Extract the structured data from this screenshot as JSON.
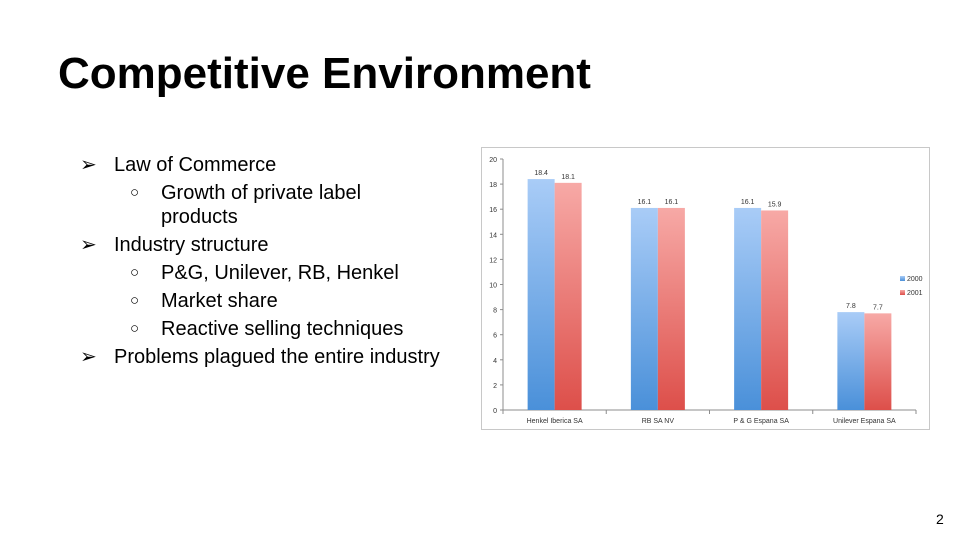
{
  "slide": {
    "title": "Competitive Environment",
    "page_number": "2",
    "bullets": [
      {
        "level": 1,
        "marker": "➢",
        "text": "Law of Commerce"
      },
      {
        "level": 2,
        "marker": "○",
        "text": "Growth of private label products"
      },
      {
        "level": 1,
        "marker": "➢",
        "text": "Industry structure"
      },
      {
        "level": 2,
        "marker": "○",
        "text": "P&G, Unilever, RB, Henkel"
      },
      {
        "level": 2,
        "marker": "○",
        "text": "Market share"
      },
      {
        "level": 2,
        "marker": "○",
        "text": "Reactive selling techniques"
      },
      {
        "level": 1,
        "marker": "➢",
        "text": "Problems plagued the entire industry"
      }
    ]
  },
  "chart_data": {
    "type": "bar",
    "categories": [
      "Henkel Iberica SA",
      "RB SA NV",
      "P & G Espana SA",
      "Unilever Espana SA"
    ],
    "series": [
      {
        "name": "2000",
        "values": [
          18.4,
          16.1,
          16.1,
          7.8
        ],
        "color_top": "#a9ccf7",
        "color_bottom": "#4a90d9"
      },
      {
        "name": "2001",
        "values": [
          18.1,
          16.1,
          15.9,
          7.7
        ],
        "color_top": "#f7a9a6",
        "color_bottom": "#dd4f4a"
      }
    ],
    "data_labels": [
      [
        "18.4",
        "16.1",
        "16.1",
        "7.8"
      ],
      [
        "18.1",
        "16.1",
        "15.9",
        "7.7"
      ]
    ],
    "yticks": [
      0,
      2,
      4,
      6,
      8,
      10,
      12,
      14,
      16,
      18,
      20
    ],
    "ylim": [
      0,
      20
    ],
    "grid": false,
    "legend_position": "right"
  }
}
